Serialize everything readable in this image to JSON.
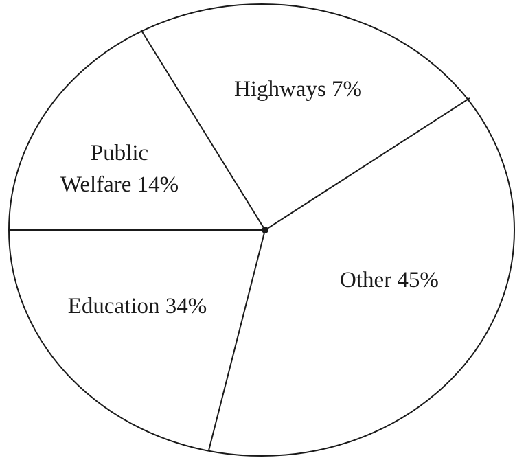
{
  "chart_data": {
    "type": "pie",
    "title": "",
    "slices": [
      {
        "label": "Highways",
        "value": 7,
        "display": "Highways 7%"
      },
      {
        "label": "Other",
        "value": 45,
        "display": "Other 45%"
      },
      {
        "label": "Education",
        "value": 34,
        "display": "Education 34%"
      },
      {
        "label": "Public Welfare",
        "value": 14,
        "display_lines": [
          "Public",
          "Welfare 14%"
        ]
      }
    ],
    "colors": {
      "stroke": "#1a1a1a",
      "fill": "#ffffff"
    }
  }
}
